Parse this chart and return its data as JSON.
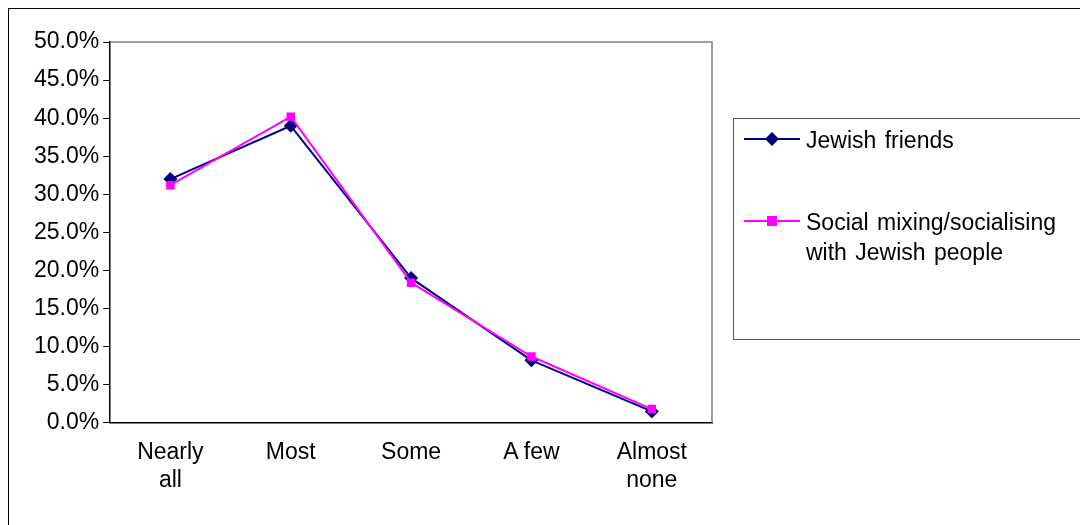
{
  "chart_data": {
    "type": "line",
    "categories": [
      "Nearly all",
      "Most",
      "Some",
      "A few",
      "Almost none"
    ],
    "series": [
      {
        "name": "Jewish friends",
        "color": "#000080",
        "marker": "diamond",
        "values": [
          32.0,
          39.0,
          19.0,
          8.2,
          1.5
        ]
      },
      {
        "name": "Social mixing/socialising with Jewish people",
        "color": "#ff00ff",
        "marker": "square",
        "values": [
          31.2,
          40.2,
          18.4,
          8.7,
          1.8
        ]
      }
    ],
    "ylim": [
      0,
      50
    ],
    "yticks": [
      {
        "value": 0,
        "label": "0.0%"
      },
      {
        "value": 5,
        "label": "5.0%"
      },
      {
        "value": 10,
        "label": "10.0%"
      },
      {
        "value": 15,
        "label": "15.0%"
      },
      {
        "value": 20,
        "label": "20.0%"
      },
      {
        "value": 25,
        "label": "25.0%"
      },
      {
        "value": 30,
        "label": "30.0%"
      },
      {
        "value": 35,
        "label": "35.0%"
      },
      {
        "value": 40,
        "label": "40.0%"
      },
      {
        "value": 45,
        "label": "45.0%"
      },
      {
        "value": 50,
        "label": "50.0%"
      }
    ],
    "grid": false,
    "legend": "right",
    "line_style": "solid"
  }
}
